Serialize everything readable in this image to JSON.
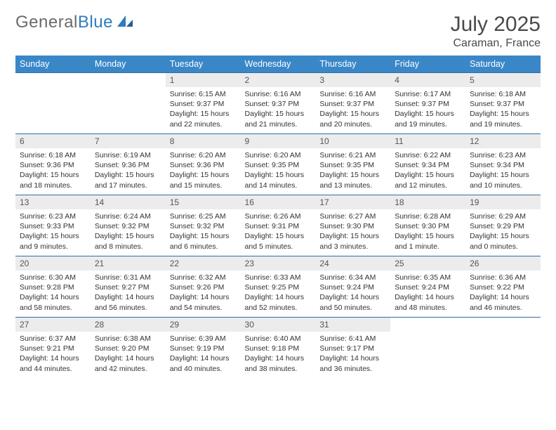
{
  "logo": {
    "part1": "General",
    "part2": "Blue"
  },
  "title": "July 2025",
  "location": "Caraman, France",
  "header_bg": "#3a87c8",
  "header_fg": "#ffffff",
  "daynum_bg": "#ececec",
  "rule_color": "#2f6da6",
  "weekdays": [
    "Sunday",
    "Monday",
    "Tuesday",
    "Wednesday",
    "Thursday",
    "Friday",
    "Saturday"
  ],
  "weeks": [
    [
      {
        "n": "",
        "l1": "",
        "l2": "",
        "l3": "",
        "l4": ""
      },
      {
        "n": "",
        "l1": "",
        "l2": "",
        "l3": "",
        "l4": ""
      },
      {
        "n": "1",
        "l1": "Sunrise: 6:15 AM",
        "l2": "Sunset: 9:37 PM",
        "l3": "Daylight: 15 hours",
        "l4": "and 22 minutes."
      },
      {
        "n": "2",
        "l1": "Sunrise: 6:16 AM",
        "l2": "Sunset: 9:37 PM",
        "l3": "Daylight: 15 hours",
        "l4": "and 21 minutes."
      },
      {
        "n": "3",
        "l1": "Sunrise: 6:16 AM",
        "l2": "Sunset: 9:37 PM",
        "l3": "Daylight: 15 hours",
        "l4": "and 20 minutes."
      },
      {
        "n": "4",
        "l1": "Sunrise: 6:17 AM",
        "l2": "Sunset: 9:37 PM",
        "l3": "Daylight: 15 hours",
        "l4": "and 19 minutes."
      },
      {
        "n": "5",
        "l1": "Sunrise: 6:18 AM",
        "l2": "Sunset: 9:37 PM",
        "l3": "Daylight: 15 hours",
        "l4": "and 19 minutes."
      }
    ],
    [
      {
        "n": "6",
        "l1": "Sunrise: 6:18 AM",
        "l2": "Sunset: 9:36 PM",
        "l3": "Daylight: 15 hours",
        "l4": "and 18 minutes."
      },
      {
        "n": "7",
        "l1": "Sunrise: 6:19 AM",
        "l2": "Sunset: 9:36 PM",
        "l3": "Daylight: 15 hours",
        "l4": "and 17 minutes."
      },
      {
        "n": "8",
        "l1": "Sunrise: 6:20 AM",
        "l2": "Sunset: 9:36 PM",
        "l3": "Daylight: 15 hours",
        "l4": "and 15 minutes."
      },
      {
        "n": "9",
        "l1": "Sunrise: 6:20 AM",
        "l2": "Sunset: 9:35 PM",
        "l3": "Daylight: 15 hours",
        "l4": "and 14 minutes."
      },
      {
        "n": "10",
        "l1": "Sunrise: 6:21 AM",
        "l2": "Sunset: 9:35 PM",
        "l3": "Daylight: 15 hours",
        "l4": "and 13 minutes."
      },
      {
        "n": "11",
        "l1": "Sunrise: 6:22 AM",
        "l2": "Sunset: 9:34 PM",
        "l3": "Daylight: 15 hours",
        "l4": "and 12 minutes."
      },
      {
        "n": "12",
        "l1": "Sunrise: 6:23 AM",
        "l2": "Sunset: 9:34 PM",
        "l3": "Daylight: 15 hours",
        "l4": "and 10 minutes."
      }
    ],
    [
      {
        "n": "13",
        "l1": "Sunrise: 6:23 AM",
        "l2": "Sunset: 9:33 PM",
        "l3": "Daylight: 15 hours",
        "l4": "and 9 minutes."
      },
      {
        "n": "14",
        "l1": "Sunrise: 6:24 AM",
        "l2": "Sunset: 9:32 PM",
        "l3": "Daylight: 15 hours",
        "l4": "and 8 minutes."
      },
      {
        "n": "15",
        "l1": "Sunrise: 6:25 AM",
        "l2": "Sunset: 9:32 PM",
        "l3": "Daylight: 15 hours",
        "l4": "and 6 minutes."
      },
      {
        "n": "16",
        "l1": "Sunrise: 6:26 AM",
        "l2": "Sunset: 9:31 PM",
        "l3": "Daylight: 15 hours",
        "l4": "and 5 minutes."
      },
      {
        "n": "17",
        "l1": "Sunrise: 6:27 AM",
        "l2": "Sunset: 9:30 PM",
        "l3": "Daylight: 15 hours",
        "l4": "and 3 minutes."
      },
      {
        "n": "18",
        "l1": "Sunrise: 6:28 AM",
        "l2": "Sunset: 9:30 PM",
        "l3": "Daylight: 15 hours",
        "l4": "and 1 minute."
      },
      {
        "n": "19",
        "l1": "Sunrise: 6:29 AM",
        "l2": "Sunset: 9:29 PM",
        "l3": "Daylight: 15 hours",
        "l4": "and 0 minutes."
      }
    ],
    [
      {
        "n": "20",
        "l1": "Sunrise: 6:30 AM",
        "l2": "Sunset: 9:28 PM",
        "l3": "Daylight: 14 hours",
        "l4": "and 58 minutes."
      },
      {
        "n": "21",
        "l1": "Sunrise: 6:31 AM",
        "l2": "Sunset: 9:27 PM",
        "l3": "Daylight: 14 hours",
        "l4": "and 56 minutes."
      },
      {
        "n": "22",
        "l1": "Sunrise: 6:32 AM",
        "l2": "Sunset: 9:26 PM",
        "l3": "Daylight: 14 hours",
        "l4": "and 54 minutes."
      },
      {
        "n": "23",
        "l1": "Sunrise: 6:33 AM",
        "l2": "Sunset: 9:25 PM",
        "l3": "Daylight: 14 hours",
        "l4": "and 52 minutes."
      },
      {
        "n": "24",
        "l1": "Sunrise: 6:34 AM",
        "l2": "Sunset: 9:24 PM",
        "l3": "Daylight: 14 hours",
        "l4": "and 50 minutes."
      },
      {
        "n": "25",
        "l1": "Sunrise: 6:35 AM",
        "l2": "Sunset: 9:24 PM",
        "l3": "Daylight: 14 hours",
        "l4": "and 48 minutes."
      },
      {
        "n": "26",
        "l1": "Sunrise: 6:36 AM",
        "l2": "Sunset: 9:22 PM",
        "l3": "Daylight: 14 hours",
        "l4": "and 46 minutes."
      }
    ],
    [
      {
        "n": "27",
        "l1": "Sunrise: 6:37 AM",
        "l2": "Sunset: 9:21 PM",
        "l3": "Daylight: 14 hours",
        "l4": "and 44 minutes."
      },
      {
        "n": "28",
        "l1": "Sunrise: 6:38 AM",
        "l2": "Sunset: 9:20 PM",
        "l3": "Daylight: 14 hours",
        "l4": "and 42 minutes."
      },
      {
        "n": "29",
        "l1": "Sunrise: 6:39 AM",
        "l2": "Sunset: 9:19 PM",
        "l3": "Daylight: 14 hours",
        "l4": "and 40 minutes."
      },
      {
        "n": "30",
        "l1": "Sunrise: 6:40 AM",
        "l2": "Sunset: 9:18 PM",
        "l3": "Daylight: 14 hours",
        "l4": "and 38 minutes."
      },
      {
        "n": "31",
        "l1": "Sunrise: 6:41 AM",
        "l2": "Sunset: 9:17 PM",
        "l3": "Daylight: 14 hours",
        "l4": "and 36 minutes."
      },
      {
        "n": "",
        "l1": "",
        "l2": "",
        "l3": "",
        "l4": ""
      },
      {
        "n": "",
        "l1": "",
        "l2": "",
        "l3": "",
        "l4": ""
      }
    ]
  ]
}
